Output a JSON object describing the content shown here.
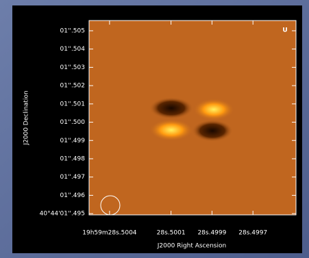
{
  "chart_data": {
    "type": "image",
    "stokes": "U",
    "x_label": "J2000 Right Ascension",
    "y_label": "J2000 Declination",
    "xlim": [
      28.5005,
      28.49949
    ],
    "ylim": [
      1.49493,
      1.50556
    ],
    "xticks": [
      {
        "value": 28.5004,
        "label": "19h59m28s.5004"
      },
      {
        "value": 28.5001,
        "label": "28s.5001"
      },
      {
        "value": 28.4999,
        "label": "28s.4999"
      },
      {
        "value": 28.4997,
        "label": "28s.4997"
      }
    ],
    "yticks": [
      {
        "value": 1.505,
        "label": "01''.505"
      },
      {
        "value": 1.504,
        "label": "01''.504"
      },
      {
        "value": 1.503,
        "label": "01''.503"
      },
      {
        "value": 1.502,
        "label": "01''.502"
      },
      {
        "value": 1.501,
        "label": "01''.501"
      },
      {
        "value": 1.5,
        "label": "01''.500"
      },
      {
        "value": 1.499,
        "label": "01''.499"
      },
      {
        "value": 1.498,
        "label": "01''.498"
      },
      {
        "value": 1.497,
        "label": "01''.497"
      },
      {
        "value": 1.496,
        "label": "01''.496"
      },
      {
        "value": 1.495,
        "label": "40°44'01''.495"
      }
    ]
  }
}
